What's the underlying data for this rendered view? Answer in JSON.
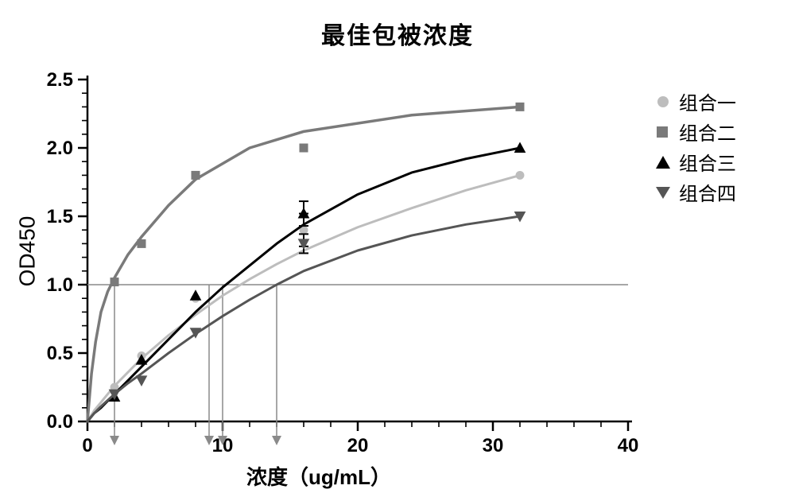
{
  "chart": {
    "type": "line",
    "title": "最佳包被浓度",
    "title_fontsize": 30,
    "title_color": "#000000",
    "xlabel": "浓度（ug/mL）",
    "ylabel": "OD450",
    "label_fontsize": 26,
    "background_color": "#ffffff",
    "plot_border_color": "#000000",
    "plot_border_width": 2.5,
    "x": {
      "lim": [
        0,
        40
      ],
      "ticks": [
        0,
        10,
        20,
        30,
        40
      ],
      "minor_step": 2,
      "tick_fontsize": 24
    },
    "y": {
      "lim": [
        0.0,
        2.5
      ],
      "ticks": [
        0.0,
        0.5,
        1.0,
        1.5,
        2.0,
        2.5
      ],
      "minor_step": 0.1,
      "tick_fontsize": 24
    },
    "legend": {
      "position": "right",
      "fontsize": 24
    },
    "reference_lines": {
      "horizontal": {
        "y": 1.0,
        "x0": 0,
        "x1": 40,
        "color": "#8a8a8a",
        "width": 1.5
      },
      "verticals": [
        {
          "x": 2.0,
          "y0": 0.0,
          "y1": 1.0,
          "color": "#8a8a8a",
          "width": 1.5,
          "arrow": true
        },
        {
          "x": 9.0,
          "y0": 0.0,
          "y1": 1.0,
          "color": "#8a8a8a",
          "width": 1.5,
          "arrow": true
        },
        {
          "x": 10.0,
          "y0": 0.0,
          "y1": 1.0,
          "color": "#8a8a8a",
          "width": 1.5,
          "arrow": true
        },
        {
          "x": 14.0,
          "y0": 0.0,
          "y1": 1.0,
          "color": "#8a8a8a",
          "width": 1.5,
          "arrow": true
        }
      ]
    },
    "series": [
      {
        "name": "组合一",
        "color": "#bdbdbd",
        "marker": "circle",
        "marker_size": 9,
        "marker_fill": "#bdbdbd",
        "marker_stroke": "#bdbdbd",
        "line_width": 3,
        "points_x": [
          0,
          2,
          4,
          8,
          16,
          32
        ],
        "points_y": [
          0.0,
          0.25,
          0.48,
          0.9,
          1.4,
          1.8
        ],
        "err_x": [
          16
        ],
        "err_y": [
          1.4
        ],
        "err": [
          0.12
        ],
        "curve_x": [
          0,
          0.5,
          1,
          2,
          3,
          4,
          6,
          8,
          10,
          12,
          14,
          16,
          20,
          24,
          28,
          32
        ],
        "curve_y": [
          0.0,
          0.08,
          0.14,
          0.26,
          0.36,
          0.46,
          0.63,
          0.78,
          0.92,
          1.04,
          1.15,
          1.25,
          1.42,
          1.56,
          1.69,
          1.8
        ]
      },
      {
        "name": "组合二",
        "color": "#7a7a7a",
        "marker": "square",
        "marker_size": 10,
        "marker_fill": "#7a7a7a",
        "marker_stroke": "#7a7a7a",
        "line_width": 3.5,
        "points_x": [
          0,
          2,
          4,
          8,
          16,
          32
        ],
        "points_y": [
          0.0,
          1.02,
          1.3,
          1.8,
          2.0,
          2.3
        ],
        "err_x": [],
        "err_y": [],
        "err": [],
        "curve_x": [
          0,
          0.3,
          0.6,
          1,
          1.5,
          2,
          3,
          4,
          6,
          8,
          12,
          16,
          24,
          32
        ],
        "curve_y": [
          0.0,
          0.35,
          0.58,
          0.8,
          0.95,
          1.05,
          1.22,
          1.35,
          1.58,
          1.77,
          2.0,
          2.12,
          2.24,
          2.3
        ]
      },
      {
        "name": "组合三",
        "color": "#000000",
        "marker": "triangle-up",
        "marker_size": 10,
        "marker_fill": "#000000",
        "marker_stroke": "#000000",
        "line_width": 3,
        "points_x": [
          0,
          2,
          4,
          8,
          16,
          32
        ],
        "points_y": [
          0.0,
          0.18,
          0.45,
          0.92,
          1.52,
          2.0
        ],
        "err_x": [
          16
        ],
        "err_y": [
          1.52
        ],
        "err": [
          0.09
        ],
        "curve_x": [
          0,
          0.5,
          1,
          2,
          3,
          4,
          6,
          8,
          10,
          12,
          14,
          16,
          20,
          24,
          28,
          32
        ],
        "curve_y": [
          0.0,
          0.06,
          0.1,
          0.2,
          0.3,
          0.4,
          0.6,
          0.8,
          0.98,
          1.14,
          1.3,
          1.44,
          1.66,
          1.82,
          1.92,
          2.0
        ]
      },
      {
        "name": "组合四",
        "color": "#555555",
        "marker": "triangle-down",
        "marker_size": 10,
        "marker_fill": "#555555",
        "marker_stroke": "#555555",
        "line_width": 3,
        "points_x": [
          0,
          2,
          4,
          8,
          16,
          32
        ],
        "points_y": [
          0.0,
          0.2,
          0.3,
          0.65,
          1.3,
          1.5
        ],
        "err_x": [
          16
        ],
        "err_y": [
          1.3
        ],
        "err": [
          0.07
        ],
        "curve_x": [
          0,
          0.5,
          1,
          2,
          3,
          4,
          6,
          8,
          10,
          12,
          14,
          16,
          20,
          24,
          28,
          32
        ],
        "curve_y": [
          0.0,
          0.06,
          0.11,
          0.2,
          0.28,
          0.35,
          0.5,
          0.64,
          0.77,
          0.89,
          1.0,
          1.1,
          1.25,
          1.36,
          1.44,
          1.5
        ]
      }
    ]
  }
}
